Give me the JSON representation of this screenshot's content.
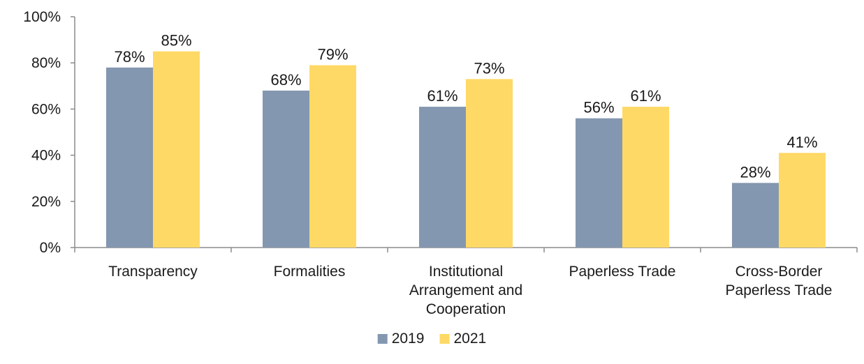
{
  "chart_data": {
    "type": "bar",
    "title": "",
    "xlabel": "",
    "ylabel": "",
    "ylim": [
      0,
      100
    ],
    "yticks": [
      0,
      20,
      40,
      60,
      80,
      100
    ],
    "ytick_format": "{v}%",
    "value_suffix": "%",
    "grid": false,
    "legend_position": "bottom",
    "categories": [
      [
        "Transparency"
      ],
      [
        "Formalities"
      ],
      [
        "Institutional",
        "Arrangement and",
        "Cooperation"
      ],
      [
        "Paperless Trade"
      ],
      [
        "Cross-Border",
        "Paperless Trade"
      ]
    ],
    "series": [
      {
        "name": "2019",
        "color": "#8497B0",
        "values": [
          78,
          68,
          61,
          56,
          28
        ]
      },
      {
        "name": "2021",
        "color": "#FFD966",
        "values": [
          85,
          79,
          73,
          61,
          41
        ]
      }
    ]
  }
}
